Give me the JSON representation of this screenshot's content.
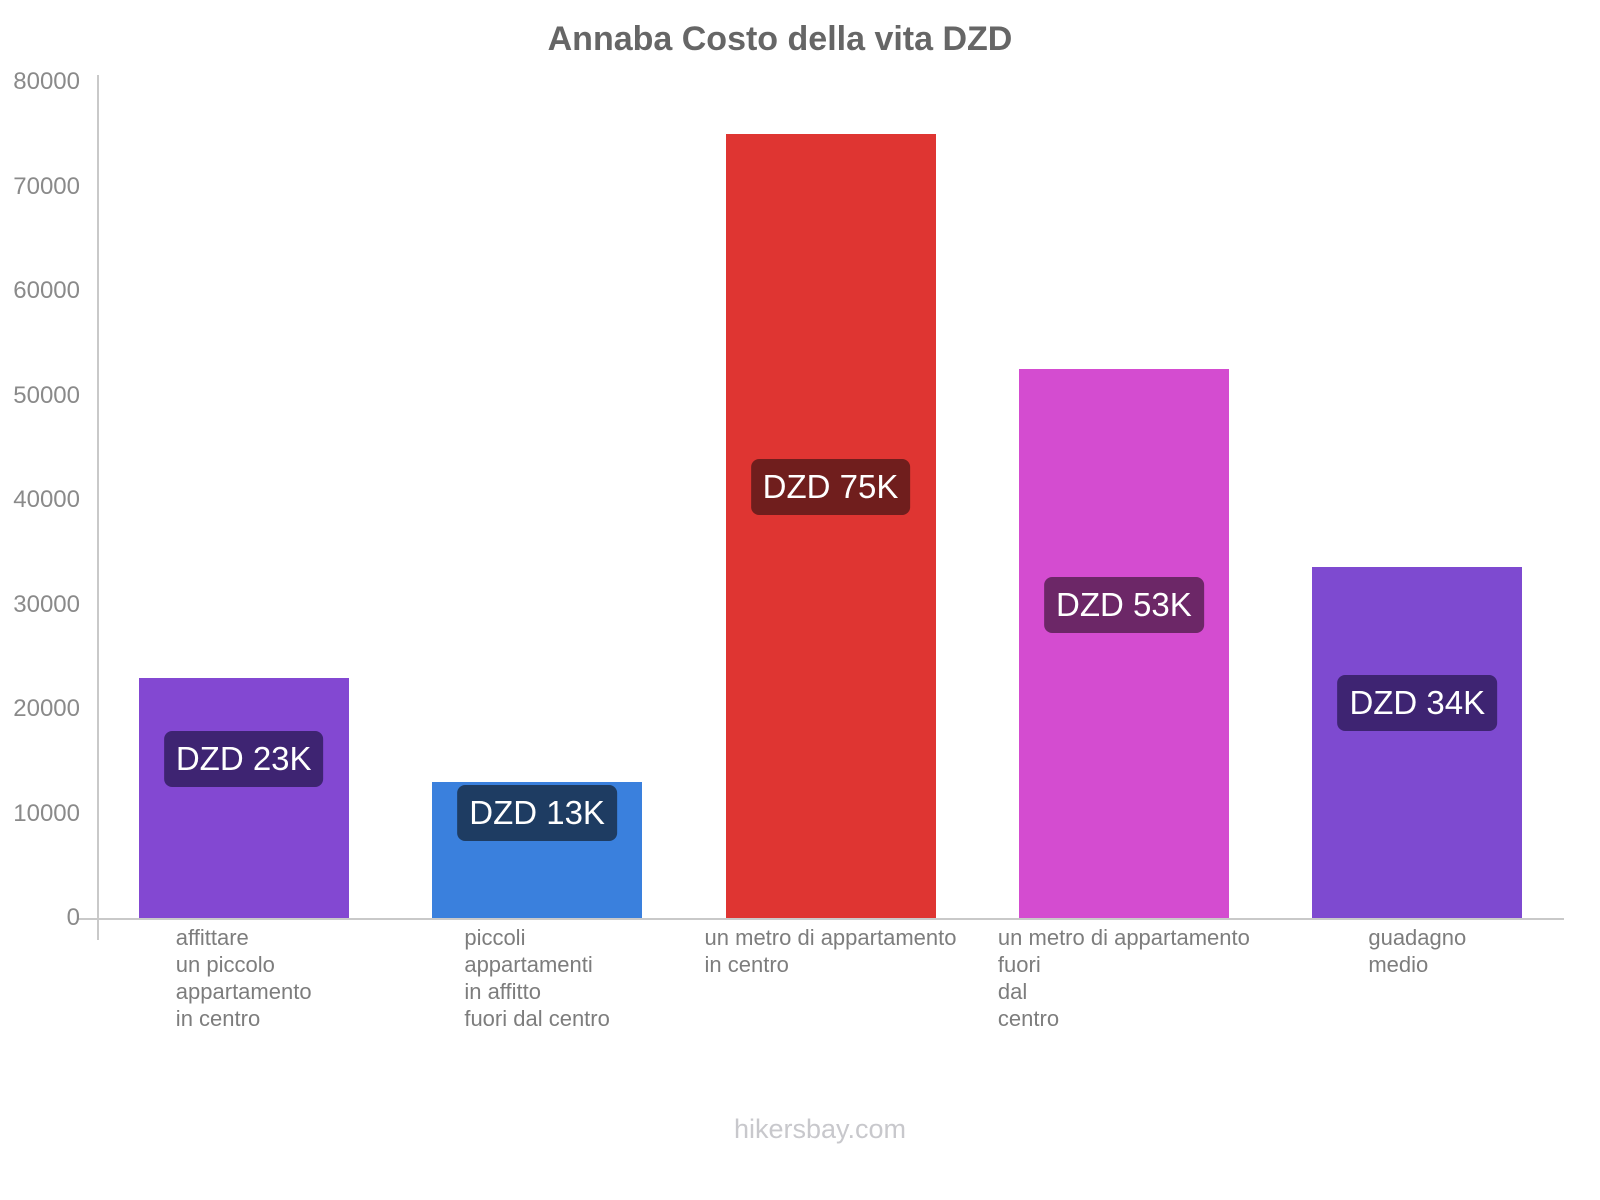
{
  "title": "Annaba Costo della vita DZD",
  "footer": "hikersbay.com",
  "colors": {
    "background": "#ffffff",
    "title_text": "#666666",
    "axis_line": "#c9c9c9",
    "tick_label": "#8a8a8a",
    "category_label": "#7d7d7d",
    "footer_text": "#c8c8cc",
    "badge_text": "#ffffff"
  },
  "chart_data": {
    "type": "bar",
    "title": "Annaba Costo della vita DZD",
    "categories": [
      "affittare\nun piccolo\nappartamento\nin centro",
      "piccoli\nappartamenti\nin affitto\nfuori dal centro",
      "un metro di appartamento\nin centro",
      "un metro di appartamento\nfuori\ndal\ncentro",
      "guadagno\nmedio"
    ],
    "values": [
      23000,
      13000,
      75000,
      52500,
      33600
    ],
    "bar_labels": [
      "DZD 23K",
      "DZD 13K",
      "DZD 75K",
      "DZD 53K",
      "DZD 34K"
    ],
    "bar_colors": [
      "#8348d2",
      "#3a80dd",
      "#df3532",
      "#d44cd0",
      "#7e4ad0"
    ],
    "badge_colors": [
      "#3e2472",
      "#1e3c62",
      "#701e1d",
      "#6c2767",
      "#3e2472"
    ],
    "xlabel": "",
    "ylabel": "",
    "ylim": [
      0,
      80000
    ],
    "yticks": [
      0,
      10000,
      20000,
      30000,
      40000,
      50000,
      60000,
      70000,
      80000
    ],
    "grid": false,
    "legend": false
  }
}
